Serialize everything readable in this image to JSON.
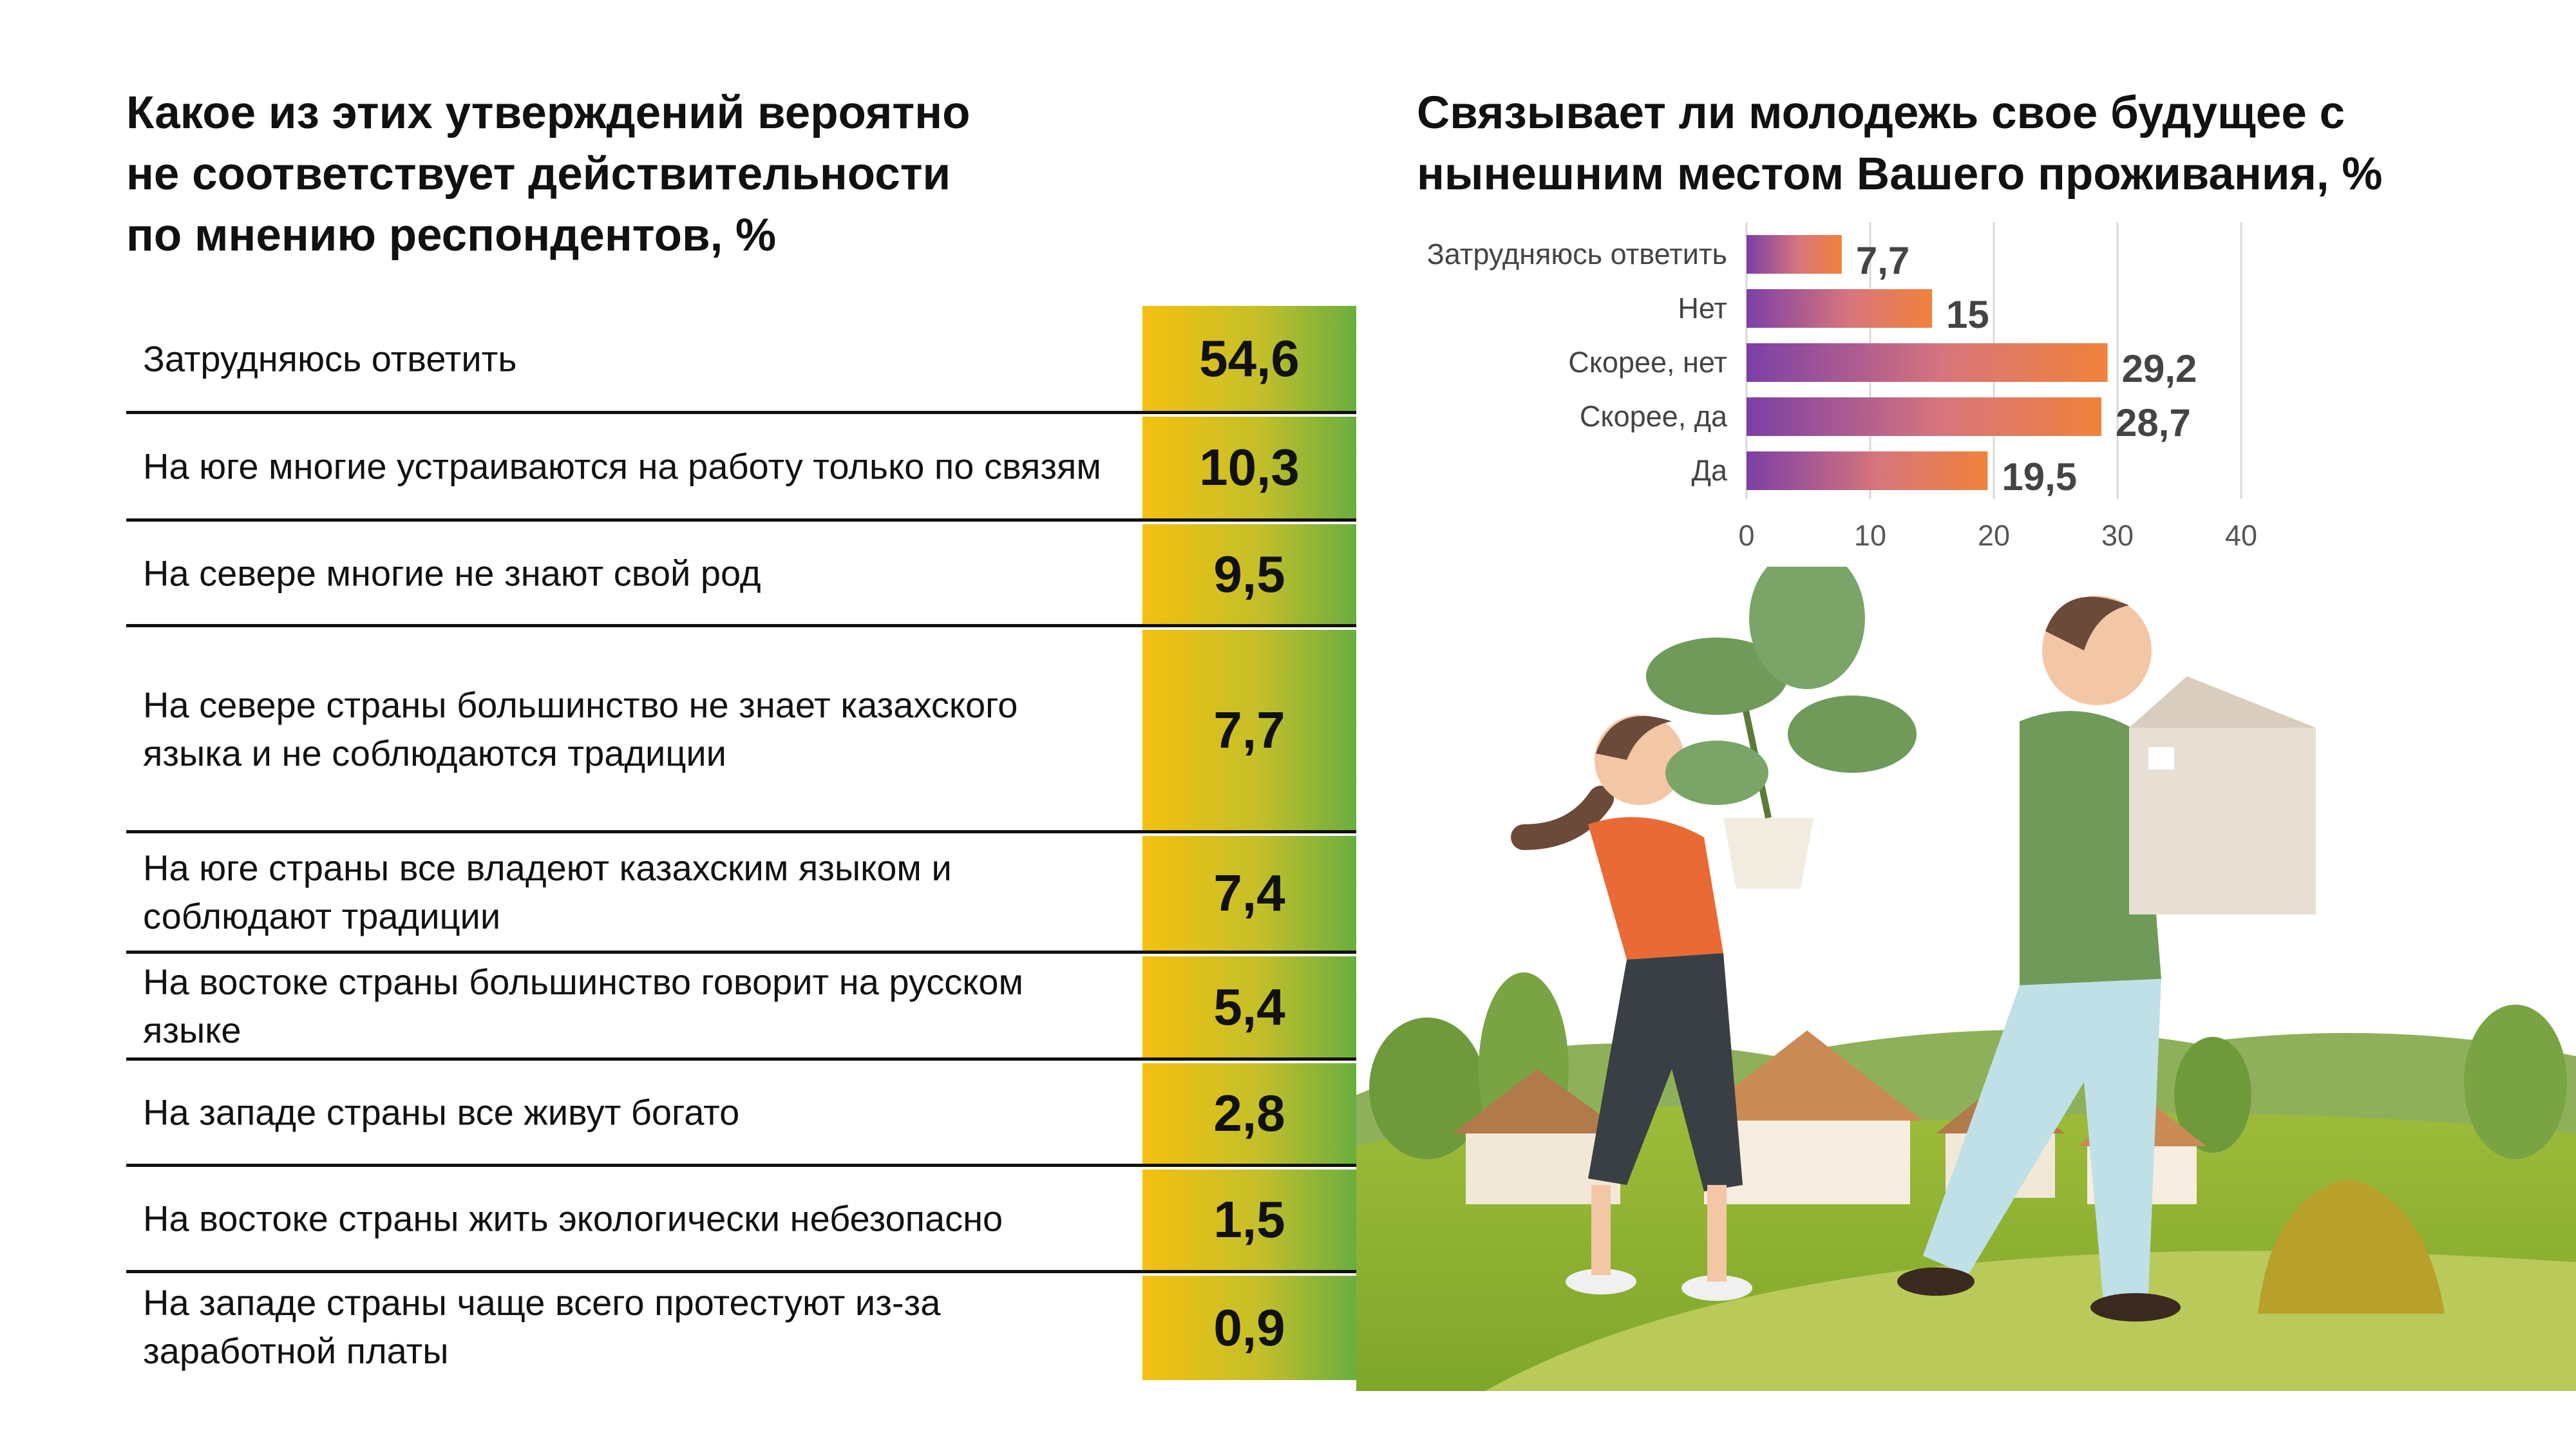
{
  "left_title": "Какое из этих утверждений вероятно\nне соответствует действительности\nпо мнению респондентов, %",
  "right_title": "Связывает ли молодежь свое будущее с\nнынешним местом Вашего проживания, %",
  "table": {
    "rows": [
      {
        "label": "Затрудняюсь ответить",
        "value": "54,6"
      },
      {
        "label": "На юге многие устраиваются на работу только по связям",
        "value": "10,3"
      },
      {
        "label": "На севере многие не знают свой род",
        "value": "9,5"
      },
      {
        "label": "На севере страны большинство не знает казахского языка и не соблюдаются традиции",
        "value": "7,7"
      },
      {
        "label": "На юге страны все владеют казахским языком и соблюдают традиции",
        "value": "7,4"
      },
      {
        "label": "На востоке страны большинство говорит на русском языке",
        "value": "5,4"
      },
      {
        "label": "На западе страны все живут богато",
        "value": "2,8"
      },
      {
        "label": "На востоке страны жить экологически небезопасно",
        "value": "1,5"
      },
      {
        "label": "На западе страны чаще всего протестуют из-за заработной платы",
        "value": "0,9"
      }
    ]
  },
  "chart_data": [
    {
      "type": "table",
      "title": "Какое из этих утверждений вероятно не соответствует действительности по мнению респондентов, %",
      "categories": [
        "Затрудняюсь ответить",
        "На юге многие устраиваются на работу только по связям",
        "На севере многие не знают свой род",
        "На севере страны большинство не знает казахского языка и не соблюдаются традиции",
        "На юге страны все владеют казахским языком и соблюдают традиции",
        "На востоке страны большинство говорит на русском языке",
        "На западе страны все живут богато",
        "На востоке страны жить экологически небезопасно",
        "На западе страны чаще всего протестуют из-за заработной платы"
      ],
      "values": [
        54.6,
        10.3,
        9.5,
        7.7,
        7.4,
        5.4,
        2.8,
        1.5,
        0.9
      ]
    },
    {
      "type": "bar",
      "orientation": "horizontal",
      "title": "Связывает ли молодежь свое будущее с нынешним местом Вашего проживания, %",
      "categories": [
        "Затрудняюсь ответить",
        "Нет",
        "Скорее, нет",
        "Скорее, да",
        "Да"
      ],
      "values": [
        7.7,
        15,
        29.2,
        28.7,
        19.5
      ],
      "value_labels": [
        "7,7",
        "15",
        "29,2",
        "28,7",
        "19,5"
      ],
      "xlim": [
        0,
        40
      ],
      "xticks": [
        0,
        10,
        20,
        30,
        40
      ],
      "grid": true,
      "colors": {
        "bar_start": "#7b3fa6",
        "bar_end": "#f0823a"
      }
    }
  ],
  "colors": {
    "value_cell_start": "#f4c10e",
    "value_cell_end": "#6aae3f",
    "text": "#111111"
  }
}
